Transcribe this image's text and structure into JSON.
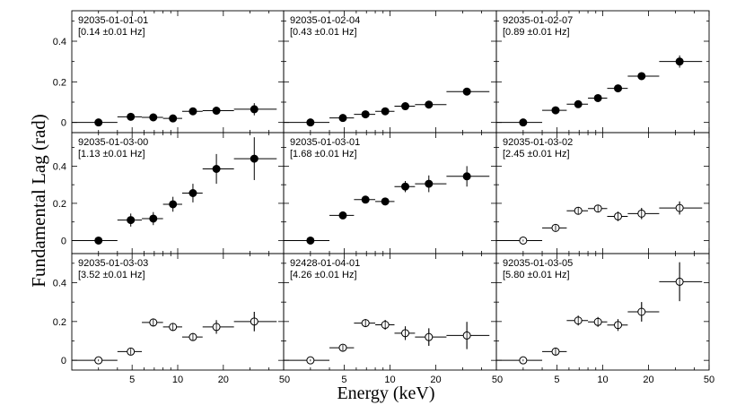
{
  "figure": {
    "xlabel": "Energy (keV)",
    "ylabel": "Fundamental Lag (rad)"
  },
  "chart_data": {
    "type": "scatter",
    "xscale": "log",
    "xlim": [
      2,
      50
    ],
    "x_ticks": [
      5,
      10,
      20,
      50
    ],
    "x_tick_labels": [
      "5",
      "10",
      "20",
      "50"
    ],
    "panel_rows": [
      {
        "ylim": [
          -0.05,
          0.55
        ],
        "y_ticks": [
          0,
          0.2,
          0.4
        ],
        "y_tick_labels": [
          "0",
          "0.2",
          "0.4"
        ]
      },
      {
        "ylim": [
          -0.07,
          0.58
        ],
        "y_ticks": [
          0,
          0.2,
          0.4
        ],
        "y_tick_labels": [
          "0",
          "0.2",
          "0.4"
        ]
      },
      {
        "ylim": [
          -0.05,
          0.55
        ],
        "y_ticks": [
          0,
          0.2,
          0.4
        ],
        "y_tick_labels": [
          "0",
          "0.2",
          "0.4"
        ]
      }
    ],
    "bins": {
      "x": [
        3.0,
        4.9,
        6.9,
        9.3,
        12.6,
        18.0,
        32.0
      ],
      "x_err_low": [
        2.0,
        4.0,
        5.8,
        8.0,
        10.7,
        14.6,
        23.5
      ],
      "x_err_high": [
        4.0,
        5.8,
        8.0,
        10.7,
        14.6,
        23.5,
        45.0
      ]
    },
    "panels": [
      {
        "obsid": "92035-01-01-01",
        "freq": "[0.14 ±0.01 Hz]",
        "marker": "filled",
        "y": [
          0.0,
          0.028,
          0.025,
          0.02,
          0.055,
          0.058,
          0.065
        ],
        "y_err": [
          0.005,
          0.012,
          0.012,
          0.012,
          0.015,
          0.02,
          0.03
        ]
      },
      {
        "obsid": "92035-01-02-04",
        "freq": "[0.43 ±0.01 Hz]",
        "marker": "filled",
        "y": [
          0.0,
          0.022,
          0.04,
          0.055,
          0.08,
          0.088,
          0.152
        ],
        "y_err": [
          0.005,
          0.008,
          0.008,
          0.008,
          0.01,
          0.012,
          0.018
        ]
      },
      {
        "obsid": "92035-01-02-07",
        "freq": "[0.89 ±0.01 Hz]",
        "marker": "filled",
        "y": [
          0.0,
          0.06,
          0.09,
          0.12,
          0.168,
          0.228,
          0.3
        ],
        "y_err": [
          0.005,
          0.008,
          0.01,
          0.01,
          0.012,
          0.015,
          0.03
        ]
      },
      {
        "obsid": "92035-01-03-00",
        "freq": "[1.13 ±0.01 Hz]",
        "marker": "filled",
        "y": [
          0.0,
          0.11,
          0.118,
          0.195,
          0.255,
          0.385,
          0.44
        ],
        "y_err": [
          0.005,
          0.035,
          0.035,
          0.04,
          0.05,
          0.08,
          0.115
        ]
      },
      {
        "obsid": "92035-01-03-01",
        "freq": "[1.68 ±0.01 Hz]",
        "marker": "filled",
        "y": [
          0.0,
          0.135,
          0.22,
          0.21,
          0.29,
          0.305,
          0.345
        ],
        "y_err": [
          0.005,
          0.015,
          0.02,
          0.02,
          0.03,
          0.045,
          0.055
        ]
      },
      {
        "obsid": "92035-01-03-02",
        "freq": "[2.45 ±0.01 Hz]",
        "marker": "open",
        "y": [
          0.0,
          0.068,
          0.16,
          0.172,
          0.13,
          0.145,
          0.175
        ],
        "y_err": [
          0.005,
          0.015,
          0.02,
          0.02,
          0.025,
          0.03,
          0.035
        ]
      },
      {
        "obsid": "92035-01-03-03",
        "freq": "[3.52 ±0.01 Hz]",
        "marker": "open",
        "y": [
          0.0,
          0.045,
          0.195,
          0.172,
          0.12,
          0.172,
          0.2
        ],
        "y_err": [
          0.005,
          0.015,
          0.02,
          0.02,
          0.02,
          0.035,
          0.05
        ]
      },
      {
        "obsid": "92428-01-04-01",
        "freq": "[4.26 ±0.01 Hz]",
        "marker": "open",
        "y": [
          0.0,
          0.065,
          0.192,
          0.183,
          0.14,
          0.12,
          0.128
        ],
        "y_err": [
          0.005,
          0.015,
          0.02,
          0.025,
          0.035,
          0.045,
          0.07
        ]
      },
      {
        "obsid": "92035-01-03-05",
        "freq": "[5.80 ±0.01 Hz]",
        "marker": "open",
        "y": [
          0.0,
          0.045,
          0.205,
          0.198,
          0.182,
          0.25,
          0.405
        ],
        "y_err": [
          0.005,
          0.02,
          0.025,
          0.025,
          0.03,
          0.05,
          0.1
        ]
      }
    ]
  }
}
